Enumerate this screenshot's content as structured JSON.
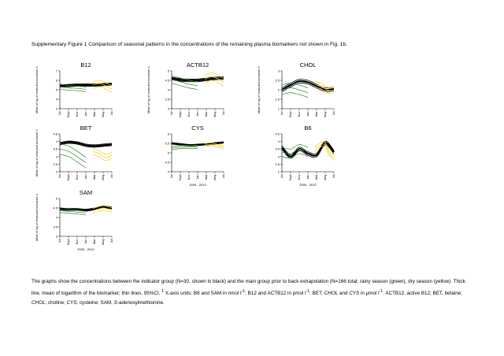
{
  "figure_title": "Supplementary Figure 1 Comparison of seasonal patterns in the concentrations of the remaining plasma biomarkers not shown in Fig. 1b.",
  "caption": {
    "p1": "The graphs show the concentrations between the indicator group (N=30, shown in black) and the main group prior to back extrapolation (N=166 total; rainy season (green), dry season (yellow). Thick line, mean of logarithm of the biomarker; thin lines, 95%CI.",
    "sup1": "1",
    "p2": " X-axis units: B6 and SAM in nmol l",
    "sup2": "-1",
    "p3": "; B12 and ACTB12 in pmol l",
    "sup3": "-1",
    "p4": "; BET, ",
    "chol": "CHOL",
    "p5": " and ",
    "cys": "CYS",
    "p6": " in μmol l",
    "sup4": "-1",
    "p7": ". ACTB12, active B12; BET, betaine; ",
    "chol2": "CHOL",
    "p8": ", choline; ",
    "cys2": "CYS",
    "p9": ", cysteine; SAM, ",
    "sadm": "S",
    "p10": "-adenosylmethionine."
  },
  "colors": {
    "indicator": "#000000",
    "rainy": "#2e8b2e",
    "dry": "#f5d020"
  },
  "chart_data": [
    {
      "type": "line",
      "title": "B12",
      "ylabel": "Mean of log of measured biomarker",
      "ylabel_sup": "1",
      "yticks": [
        "3",
        "4",
        "5",
        "6",
        "7"
      ],
      "ylim": [
        3,
        7
      ],
      "xticks": [
        "Jul",
        "Sept",
        "Nov",
        "Jan",
        "Mar",
        "May",
        "Jul"
      ],
      "xlabel": "",
      "series": [
        {
          "group": "indicator",
          "x": [
            0,
            1,
            2,
            3,
            4,
            5,
            6
          ],
          "mean": [
            5.4,
            5.45,
            5.5,
            5.5,
            5.5,
            5.55,
            5.6
          ],
          "ci": 0.12
        },
        {
          "group": "rainy",
          "x": [
            0,
            1,
            2,
            3
          ],
          "mean": [
            5.35,
            5.2,
            5.15,
            5.05
          ],
          "ci": 0.25
        },
        {
          "group": "dry",
          "x": [
            3.8,
            4.5,
            5,
            5.5,
            6
          ],
          "mean": [
            5.5,
            5.65,
            5.55,
            5.3,
            5.1
          ],
          "ci": 0.35
        }
      ]
    },
    {
      "type": "line",
      "title": "ACTB12",
      "ylabel": "Mean of log of measured biomarker",
      "ylabel_sup": "1",
      "yticks": [
        "3",
        "3.5",
        "4",
        "4.5",
        "5"
      ],
      "ylim": [
        3,
        5
      ],
      "xticks": [
        "Jul",
        "Sept",
        "Nov",
        "Jan",
        "Mar",
        "May",
        "Jul"
      ],
      "xlabel": "",
      "series": [
        {
          "group": "indicator",
          "x": [
            0,
            1,
            2,
            3,
            4,
            5,
            6
          ],
          "mean": [
            4.6,
            4.52,
            4.5,
            4.5,
            4.55,
            4.6,
            4.62
          ],
          "ci": 0.07
        },
        {
          "group": "rainy",
          "x": [
            0,
            1,
            2,
            3
          ],
          "mean": [
            4.55,
            4.42,
            4.3,
            4.22
          ],
          "ci": 0.2
        },
        {
          "group": "dry",
          "x": [
            3.8,
            4.5,
            5,
            5.5,
            6
          ],
          "mean": [
            4.55,
            4.7,
            4.65,
            4.55,
            4.4
          ],
          "ci": 0.2
        }
      ]
    },
    {
      "type": "line",
      "title": "CHOL",
      "ylabel": "Mean of log of measured biomarker",
      "ylabel_sup": "1",
      "yticks": [
        "1",
        "1.5",
        "2",
        "2.5",
        "3"
      ],
      "ylim": [
        1,
        3
      ],
      "xticks": [
        "Jul",
        "Sept",
        "Nov",
        "Jan",
        "Mar",
        "May",
        "Jul"
      ],
      "xlabel": "",
      "series": [
        {
          "group": "indicator",
          "x": [
            0,
            1,
            2,
            3,
            4,
            5,
            6
          ],
          "mean": [
            2.0,
            2.25,
            2.45,
            2.4,
            2.2,
            2.0,
            2.05
          ],
          "ci": 0.1
        },
        {
          "group": "rainy",
          "x": [
            0,
            1,
            2,
            3
          ],
          "mean": [
            2.0,
            2.1,
            2.0,
            1.85
          ],
          "ci": 0.25
        },
        {
          "group": "dry",
          "x": [
            3.8,
            4.5,
            5,
            5.5,
            6
          ],
          "mean": [
            2.3,
            2.2,
            2.05,
            1.95,
            2.0
          ],
          "ci": 0.15
        }
      ]
    },
    {
      "type": "line",
      "title": "BET",
      "ylabel": "Mean of log of measured biomarker",
      "ylabel_sup": "1",
      "yticks": [
        "2",
        "2.5",
        "3",
        "3.5",
        "4",
        "4.5"
      ],
      "ylim": [
        2,
        4.5
      ],
      "xticks": [
        "Jul",
        "Sept",
        "Nov",
        "Jan",
        "Mar",
        "May",
        "Jul"
      ],
      "xlabel": "",
      "series": [
        {
          "group": "indicator",
          "x": [
            0,
            1,
            2,
            3,
            4,
            5,
            6
          ],
          "mean": [
            3.85,
            3.95,
            3.9,
            3.75,
            3.7,
            3.75,
            3.8
          ],
          "ci": 0.08
        },
        {
          "group": "rainy",
          "x": [
            0,
            1,
            2,
            3
          ],
          "mean": [
            3.5,
            3.35,
            3.0,
            2.6
          ],
          "ci": 0.35
        },
        {
          "group": "dry",
          "x": [
            3.8,
            4.5,
            5,
            5.5,
            6
          ],
          "mean": [
            3.35,
            3.2,
            3.0,
            2.95,
            3.1
          ],
          "ci": 0.2
        }
      ]
    },
    {
      "type": "line",
      "title": "CYS",
      "ylabel": "",
      "ylabel_sup": "",
      "yticks": [
        "4",
        "4.5",
        "5",
        "5.5",
        "6"
      ],
      "ylim": [
        4,
        6
      ],
      "xticks": [
        "Jul",
        "Sept",
        "Nov",
        "Jan",
        "Mar",
        "May",
        "Jul"
      ],
      "xlabel": "2009 - 2010",
      "series": [
        {
          "group": "indicator",
          "x": [
            0,
            1,
            2,
            3,
            4,
            5,
            6
          ],
          "mean": [
            5.5,
            5.45,
            5.4,
            5.42,
            5.45,
            5.5,
            5.55
          ],
          "ci": 0.04
        },
        {
          "group": "rainy",
          "x": [
            0,
            1,
            2,
            3
          ],
          "mean": [
            5.25,
            5.3,
            5.3,
            5.32
          ],
          "ci": 0.08
        },
        {
          "group": "dry",
          "x": [
            3.8,
            4.5,
            5,
            5.5,
            6
          ],
          "mean": [
            5.4,
            5.45,
            5.4,
            5.35,
            5.3
          ],
          "ci": 0.08
        }
      ]
    },
    {
      "type": "line",
      "title": "B6",
      "ylabel": "",
      "ylabel_sup": "",
      "yticks": [
        "2",
        "2.5",
        "3",
        "3.5",
        "4",
        "4.5"
      ],
      "ylim": [
        2,
        4.5
      ],
      "xticks": [
        "Jul",
        "Sept",
        "Nov",
        "Jan",
        "Mar",
        "May",
        "Jul"
      ],
      "xlabel": "2009 - 2010",
      "series": [
        {
          "group": "indicator",
          "x": [
            0,
            1,
            2,
            3,
            4,
            5,
            6
          ],
          "mean": [
            3.6,
            3.0,
            3.5,
            3.2,
            3.1,
            3.9,
            3.3
          ],
          "ci": 0.12
        },
        {
          "group": "rainy",
          "x": [
            0,
            1,
            2,
            3
          ],
          "mean": [
            3.3,
            3.2,
            3.5,
            3.3
          ],
          "ci": 0.3
        },
        {
          "group": "dry",
          "x": [
            3.8,
            4.5,
            5,
            5.5,
            6
          ],
          "mean": [
            3.5,
            3.8,
            3.75,
            3.2,
            2.9
          ],
          "ci": 0.15
        }
      ]
    },
    {
      "type": "line",
      "title": "SAM",
      "ylabel": "Mean of log of measured biomarker",
      "ylabel_sup": "1",
      "yticks": [
        "3",
        "3.5",
        "4",
        "4.5",
        "5"
      ],
      "ylim": [
        3,
        5
      ],
      "xticks": [
        "Jul",
        "Sept",
        "Nov",
        "Jan",
        "Mar",
        "May",
        "Jul"
      ],
      "xlabel": "2009 - 2010",
      "series": [
        {
          "group": "indicator",
          "x": [
            0,
            1,
            2,
            3,
            4,
            5,
            6
          ],
          "mean": [
            4.45,
            4.42,
            4.42,
            4.38,
            4.45,
            4.55,
            4.5
          ],
          "ci": 0.05
        },
        {
          "group": "rainy",
          "x": [
            0,
            1,
            2,
            3
          ],
          "mean": [
            4.35,
            4.32,
            4.28,
            4.22
          ],
          "ci": 0.1
        },
        {
          "group": "dry",
          "x": [
            3.8,
            4.5,
            5,
            5.5,
            6
          ],
          "mean": [
            4.35,
            4.45,
            4.5,
            4.45,
            4.4
          ],
          "ci": 0.12
        }
      ]
    }
  ]
}
